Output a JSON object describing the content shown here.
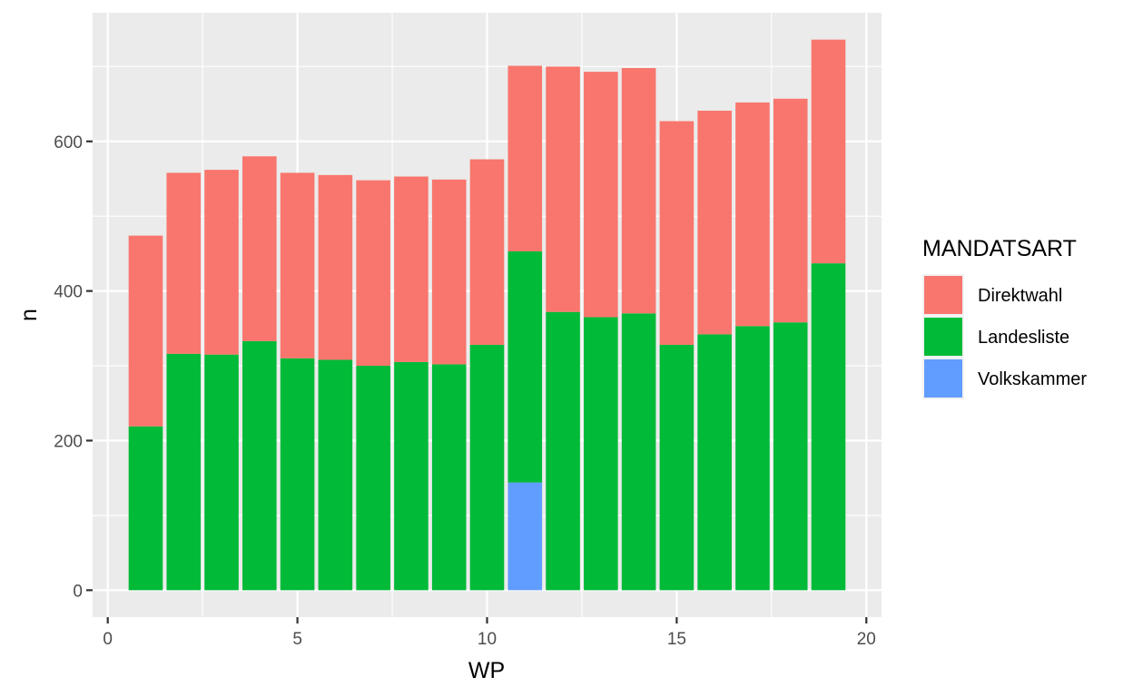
{
  "chart_data": {
    "type": "bar",
    "stacked": true,
    "xlabel": "WP",
    "ylabel": "n",
    "xlim": [
      -0.4,
      20.4
    ],
    "ylim": [
      -36,
      772
    ],
    "x_ticks": [
      0,
      5,
      10,
      15,
      20
    ],
    "y_ticks": [
      0,
      200,
      400,
      600
    ],
    "grid": true,
    "legend": {
      "title": "MANDATSART",
      "position": "right"
    },
    "x": [
      1,
      2,
      3,
      4,
      5,
      6,
      7,
      8,
      9,
      10,
      11,
      12,
      13,
      14,
      15,
      16,
      17,
      18,
      19
    ],
    "series": [
      {
        "name": "Volkskammer",
        "color": "#619CFF",
        "values": [
          0,
          0,
          0,
          0,
          0,
          0,
          0,
          0,
          0,
          0,
          144,
          0,
          0,
          0,
          0,
          0,
          0,
          0,
          0
        ]
      },
      {
        "name": "Landesliste",
        "color": "#00BA38",
        "values": [
          219,
          316,
          315,
          333,
          310,
          308,
          300,
          305,
          302,
          328,
          309,
          372,
          365,
          370,
          328,
          342,
          353,
          358,
          437
        ]
      },
      {
        "name": "Direktwahl",
        "color": "#F8766D",
        "values": [
          255,
          242,
          247,
          247,
          248,
          247,
          248,
          248,
          247,
          248,
          248,
          328,
          328,
          328,
          299,
          299,
          299,
          299,
          299
        ]
      }
    ],
    "legend_order": [
      "Direktwahl",
      "Landesliste",
      "Volkskammer"
    ]
  }
}
